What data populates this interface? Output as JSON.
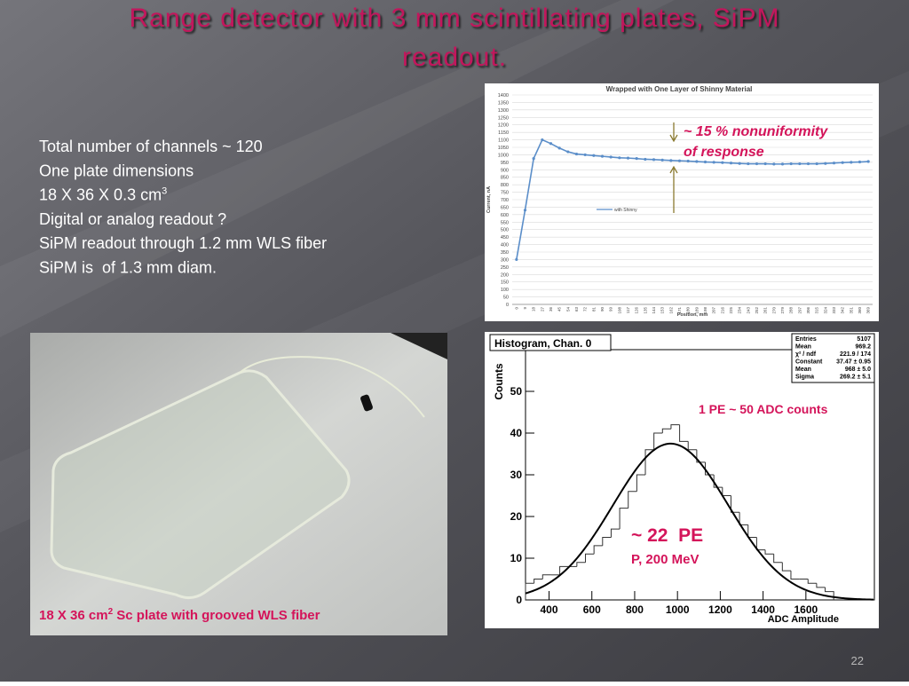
{
  "title_lines": [
    "Range detector with 3 mm scintillating plates, SiPM",
    "readout."
  ],
  "body_lines": [
    {
      "text": "Total number of channels ~ 120"
    },
    {
      "text": "One plate dimensions"
    },
    {
      "text": "18 X 36 X 0.3 cm",
      "sup": "3"
    },
    {
      "text": "Digital or analog readout ?"
    },
    {
      "text": "SiPM readout through 1.2 mm WLS fiber"
    },
    {
      "text": "SiPM is  of 1.3 mm diam."
    }
  ],
  "photo_caption": {
    "text": "18 X 36 cm",
    "sup": "2",
    "rest": " Sc plate with grooved WLS fiber"
  },
  "page_number": "22",
  "chart_data": [
    {
      "type": "line",
      "title": "Wrapped with One Layer of Shinny Material",
      "x_label": "Position, mm",
      "y_label": "Current, nA",
      "categories": [
        "0",
        "9",
        "18",
        "27",
        "36",
        "45",
        "54",
        "63",
        "72",
        "81",
        "90",
        "99",
        "108",
        "117",
        "126",
        "135",
        "144",
        "153",
        "162",
        "171",
        "180",
        "189",
        "198",
        "207",
        "216",
        "225",
        "234",
        "243",
        "252",
        "261",
        "270",
        "279",
        "288",
        "297",
        "306",
        "315",
        "324",
        "333",
        "342",
        "351",
        "360",
        "369"
      ],
      "series": [
        {
          "name": "with Shinny",
          "color": "#5b8ec9",
          "values": [
            300,
            630,
            975,
            1100,
            1075,
            1045,
            1020,
            1005,
            1000,
            995,
            990,
            985,
            980,
            978,
            975,
            970,
            968,
            965,
            962,
            960,
            958,
            955,
            952,
            950,
            948,
            945,
            942,
            940,
            940,
            940,
            938,
            938,
            940,
            940,
            940,
            940,
            942,
            945,
            948,
            950,
            952,
            955
          ]
        }
      ],
      "ylim": [
        0,
        1400
      ],
      "yticks": [
        0,
        50,
        100,
        150,
        200,
        250,
        300,
        350,
        400,
        450,
        500,
        550,
        600,
        650,
        700,
        750,
        800,
        850,
        900,
        950,
        1000,
        1050,
        1100,
        1150,
        1200,
        1250,
        1300,
        1350,
        1400
      ],
      "grid": true,
      "annotations": [
        "~ 15 % nonuniformity",
        "of response"
      ]
    },
    {
      "type": "histogram",
      "title": "Histogram, Chan. 0",
      "x_label": "ADC Amplitude",
      "y_label": "Counts",
      "bins": [
        290,
        330,
        370,
        410,
        450,
        490,
        530,
        570,
        610,
        650,
        690,
        730,
        770,
        810,
        850,
        890,
        930,
        970,
        1010,
        1050,
        1090,
        1130,
        1170,
        1210,
        1250,
        1290,
        1330,
        1370,
        1410,
        1450,
        1490,
        1530,
        1570,
        1610,
        1650,
        1690,
        1730
      ],
      "values": [
        4,
        5,
        6,
        6,
        8,
        8,
        9,
        11,
        13,
        15,
        17,
        22,
        26,
        30,
        36,
        40,
        41,
        42,
        38,
        36,
        33,
        30,
        27,
        25,
        21,
        18,
        15,
        12,
        11,
        9,
        7,
        5,
        5,
        4,
        3,
        2
      ],
      "color": "#333333",
      "fit": {
        "constant": 37.47,
        "mean": 968,
        "sigma": 269.2,
        "color": "#000000"
      },
      "xlim": [
        290,
        1920
      ],
      "xticks": [
        400,
        600,
        800,
        1000,
        1200,
        1400,
        1600
      ],
      "ylim": [
        0,
        60
      ],
      "yticks": [
        0,
        10,
        20,
        30,
        40,
        50
      ],
      "stats": [
        [
          "Entries",
          "5107"
        ],
        [
          "Mean",
          "969.2"
        ],
        [
          "χ² / ndf",
          "221.9 / 174"
        ],
        [
          "Constant",
          "37.47 ± 0.95"
        ],
        [
          "Mean",
          "968 ± 5.0"
        ],
        [
          "Sigma",
          "269.2 ± 5.1"
        ]
      ],
      "annotations": [
        "1 PE ~ 50 ADC counts",
        "~ 22  PE",
        "P, 200 MeV"
      ]
    }
  ]
}
